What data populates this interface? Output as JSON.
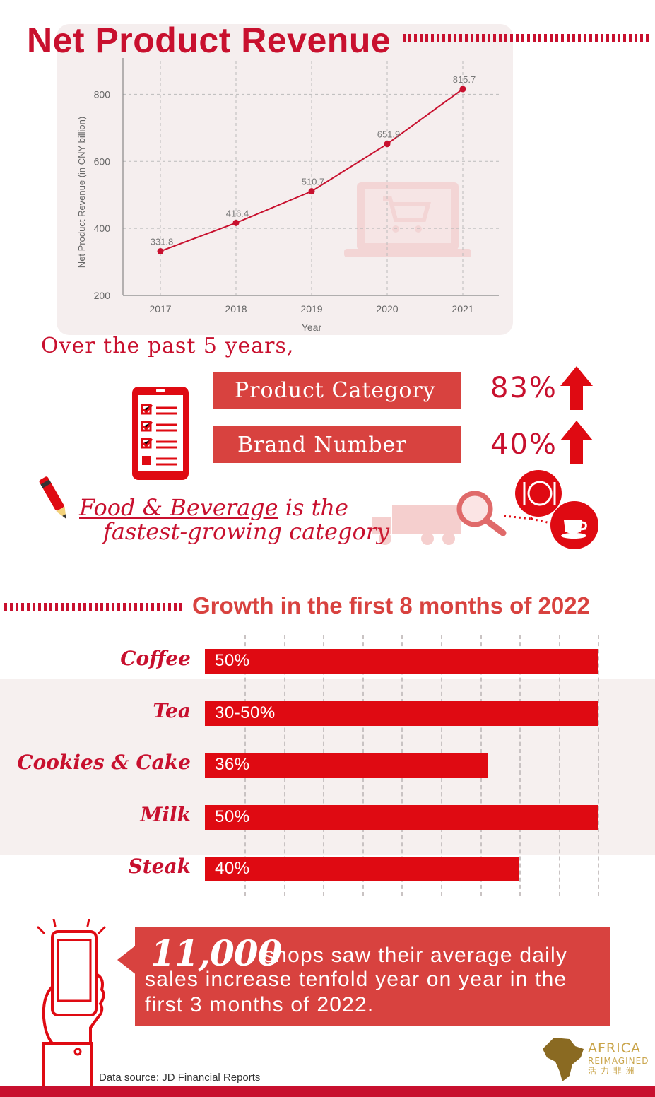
{
  "header": {
    "title": "Net Product Revenue"
  },
  "chart_data": [
    {
      "type": "line",
      "title": "Net Product Revenue",
      "xlabel": "Year",
      "ylabel": "Net Product Revenue (in CNY billion)",
      "x": [
        "2017",
        "2018",
        "2019",
        "2020",
        "2021"
      ],
      "values": [
        331.8,
        416.4,
        510.7,
        651.9,
        815.7
      ],
      "data_labels": [
        "331.8",
        "416.4",
        "510.7",
        "651.9",
        "815.7"
      ],
      "yticks": [
        "200",
        "400",
        "600",
        "800"
      ],
      "ylim": [
        200,
        900
      ],
      "grid": true
    },
    {
      "type": "bar",
      "orientation": "horizontal",
      "title": "Growth in the first 8 months of 2022",
      "categories": [
        "Coffee",
        "Tea",
        "Cookies & Cake",
        "Milk",
        "Steak"
      ],
      "labels": [
        "50%",
        "30-50%",
        "36%",
        "50%",
        "40%"
      ],
      "values": [
        50,
        50,
        36,
        50,
        40
      ],
      "xlim": [
        0,
        50
      ]
    }
  ],
  "summary": {
    "intro": "Over the past 5 years,",
    "items": [
      {
        "label": "Product Category",
        "value": "83%"
      },
      {
        "label": "Brand Number",
        "value": "40%"
      }
    ]
  },
  "food": {
    "highlight": "Food & Beverage",
    "line1_rest": " is the",
    "line2": "fastest-growing category"
  },
  "growth": {
    "title": "Growth in the first 8 months of 2022"
  },
  "callout": {
    "number": "11,000",
    "line1": "shops saw their average daily",
    "line2": "sales increase tenfold year on year in the",
    "line3": "first 3 months of 2022."
  },
  "footer": {
    "source": "Data source: JD Financial Reports",
    "logo_line1": "AFRICA",
    "logo_line2": "REIMAGINED",
    "logo_line3": "活 力 非 洲"
  },
  "colors": {
    "primary": "#c8102e",
    "accent": "#d8423f",
    "bar": "#df0a12",
    "card": "#f5eeee"
  }
}
